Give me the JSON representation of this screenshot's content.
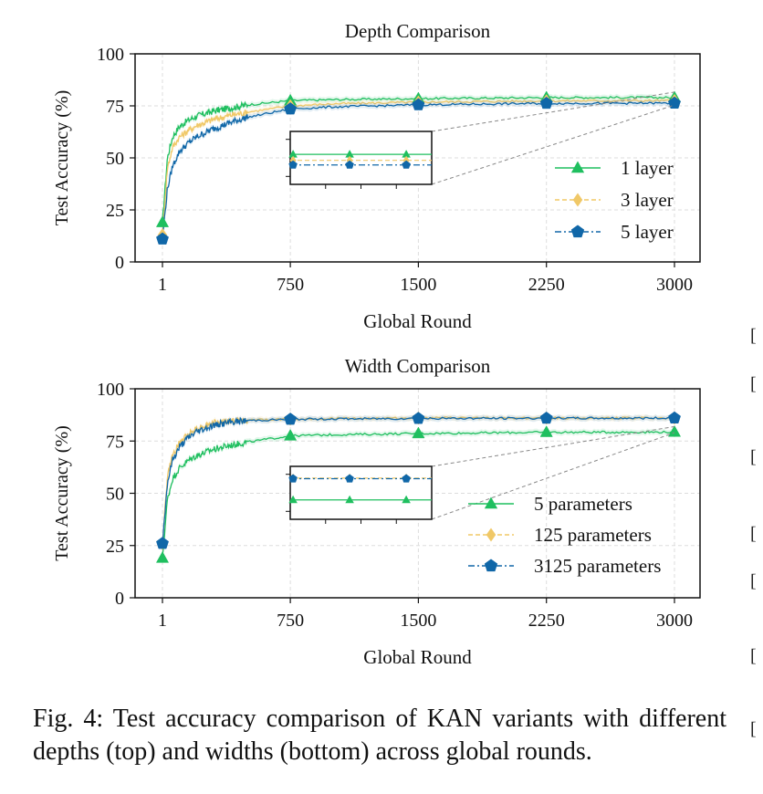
{
  "chart_data": [
    {
      "type": "line",
      "title": "Depth Comparison",
      "xlabel": "Global Round",
      "ylabel": "Test Accuracy (%)",
      "xlim": [
        1,
        3000
      ],
      "ylim": [
        0,
        100
      ],
      "xticks": [
        "1",
        "750",
        "1500",
        "2250",
        "3000"
      ],
      "yticks": [
        "0",
        "25",
        "50",
        "75",
        "100"
      ],
      "grid": true,
      "legend_position": "lower-right",
      "inset": true,
      "series": [
        {
          "name": "1 layer",
          "color": "#1fbf5f",
          "marker": "triangle",
          "dash": "solid",
          "x": [
            1,
            30,
            60,
            100,
            150,
            200,
            300,
            400,
            500,
            750,
            1000,
            1500,
            2000,
            2250,
            3000
          ],
          "y": [
            19,
            50,
            60,
            65,
            68,
            70,
            72.5,
            74,
            75.5,
            77.5,
            78,
            78.5,
            78.8,
            79,
            79
          ]
        },
        {
          "name": "3 layer",
          "color": "#f0c867",
          "marker": "diamond",
          "dash": "dashed",
          "x": [
            1,
            30,
            60,
            100,
            150,
            200,
            300,
            400,
            500,
            750,
            1000,
            1500,
            2000,
            2250,
            3000
          ],
          "y": [
            13,
            45,
            55,
            60,
            63,
            65.5,
            68.5,
            70.5,
            72,
            75,
            76,
            76.8,
            77.2,
            77.4,
            77.5
          ]
        },
        {
          "name": "5 layer",
          "color": "#1067a8",
          "marker": "pentagon",
          "dash": "dashdot",
          "x": [
            1,
            30,
            60,
            100,
            150,
            200,
            300,
            400,
            500,
            750,
            1000,
            1500,
            2000,
            2250,
            3000
          ],
          "y": [
            11,
            35,
            46,
            53,
            57,
            60,
            64,
            67,
            69.5,
            73.5,
            74.5,
            75.5,
            76,
            76.2,
            76.3
          ]
        }
      ]
    },
    {
      "type": "line",
      "title": "Width Comparison",
      "xlabel": "Global Round",
      "ylabel": "Test Accuracy (%)",
      "xlim": [
        1,
        3000
      ],
      "ylim": [
        0,
        100
      ],
      "xticks": [
        "1",
        "750",
        "1500",
        "2250",
        "3000"
      ],
      "yticks": [
        "0",
        "25",
        "50",
        "75",
        "100"
      ],
      "grid": true,
      "legend_position": "lower-right",
      "inset": true,
      "series": [
        {
          "name": "5 parameters",
          "color": "#1fbf5f",
          "marker": "triangle",
          "dash": "solid",
          "x": [
            1,
            30,
            60,
            100,
            150,
            200,
            300,
            400,
            500,
            750,
            1000,
            1500,
            2000,
            2250,
            3000
          ],
          "y": [
            19,
            47,
            57,
            62,
            65.5,
            68,
            71,
            73,
            74.5,
            77.5,
            78,
            78.6,
            79,
            79.2,
            79.3
          ]
        },
        {
          "name": "125 parameters",
          "color": "#f0c867",
          "marker": "diamond",
          "dash": "dashed",
          "x": [
            1,
            30,
            60,
            100,
            150,
            200,
            300,
            400,
            500,
            750,
            1000,
            1500,
            2000,
            2250,
            3000
          ],
          "y": [
            26,
            58,
            68,
            74,
            78,
            81,
            83.5,
            84.5,
            85,
            85.5,
            85.8,
            86,
            86,
            86,
            86
          ]
        },
        {
          "name": "3125 parameters",
          "color": "#1067a8",
          "marker": "pentagon",
          "dash": "dashdot",
          "x": [
            1,
            30,
            60,
            100,
            150,
            200,
            300,
            400,
            500,
            750,
            1000,
            1500,
            2000,
            2250,
            3000
          ],
          "y": [
            26,
            55,
            66,
            72,
            76.5,
            79.5,
            82.5,
            84,
            84.8,
            85.4,
            85.6,
            85.8,
            85.9,
            85.9,
            86
          ]
        }
      ]
    }
  ],
  "caption": "Fig. 4: Test accuracy comparison of KAN variants with different depths (top) and widths (bottom) across global rounds.",
  "edge_marks": [
    "[",
    "[",
    "[",
    "[",
    "[",
    "[",
    "["
  ]
}
